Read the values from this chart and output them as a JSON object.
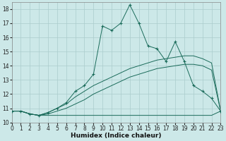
{
  "xlabel": "Humidex (Indice chaleur)",
  "bg_color": "#cce8e8",
  "grid_color": "#aacccc",
  "line_color": "#1a6b5a",
  "xlim": [
    0,
    23
  ],
  "ylim": [
    10,
    18.5
  ],
  "yticks": [
    10,
    11,
    12,
    13,
    14,
    15,
    16,
    17,
    18
  ],
  "xticks": [
    0,
    1,
    2,
    3,
    4,
    5,
    6,
    7,
    8,
    9,
    10,
    11,
    12,
    13,
    14,
    15,
    16,
    17,
    18,
    19,
    20,
    21,
    22,
    23
  ],
  "s1_x": [
    0,
    1,
    2,
    3,
    4,
    5,
    6,
    7,
    8,
    9,
    10,
    11,
    12,
    13,
    14,
    15,
    16,
    17,
    18,
    19,
    20,
    21,
    22,
    23
  ],
  "s1_y": [
    10.8,
    10.8,
    10.6,
    10.5,
    10.5,
    10.5,
    10.5,
    10.5,
    10.5,
    10.5,
    10.5,
    10.5,
    10.5,
    10.5,
    10.5,
    10.5,
    10.5,
    10.5,
    10.5,
    10.5,
    10.5,
    10.5,
    10.5,
    10.8
  ],
  "s2_x": [
    0,
    1,
    2,
    3,
    4,
    5,
    6,
    7,
    8,
    9,
    10,
    11,
    12,
    13,
    14,
    15,
    16,
    17,
    18,
    19,
    20,
    21,
    22,
    23
  ],
  "s2_y": [
    10.8,
    10.8,
    10.6,
    10.5,
    10.6,
    10.8,
    11.0,
    11.3,
    11.6,
    12.0,
    12.3,
    12.6,
    12.9,
    13.2,
    13.4,
    13.6,
    13.8,
    13.9,
    14.0,
    14.1,
    14.1,
    14.0,
    13.7,
    10.8
  ],
  "s3_x": [
    0,
    1,
    2,
    3,
    4,
    5,
    6,
    7,
    8,
    9,
    10,
    11,
    12,
    13,
    14,
    15,
    16,
    17,
    18,
    19,
    20,
    21,
    22,
    23
  ],
  "s3_y": [
    10.8,
    10.8,
    10.6,
    10.5,
    10.7,
    11.0,
    11.3,
    11.8,
    12.2,
    12.6,
    12.9,
    13.2,
    13.5,
    13.8,
    14.0,
    14.2,
    14.4,
    14.5,
    14.6,
    14.7,
    14.7,
    14.5,
    14.2,
    10.8
  ],
  "s4_x": [
    0,
    1,
    2,
    3,
    4,
    5,
    6,
    7,
    8,
    9,
    10,
    11,
    12,
    13,
    14,
    15,
    16,
    17,
    18,
    19,
    20,
    21,
    22,
    23
  ],
  "s4_y": [
    10.8,
    10.8,
    10.6,
    10.5,
    10.7,
    11.0,
    11.4,
    12.2,
    12.6,
    13.4,
    16.8,
    16.5,
    17.0,
    18.3,
    17.0,
    15.4,
    15.2,
    14.3,
    15.7,
    14.3,
    12.6,
    12.2,
    11.7,
    10.8
  ]
}
